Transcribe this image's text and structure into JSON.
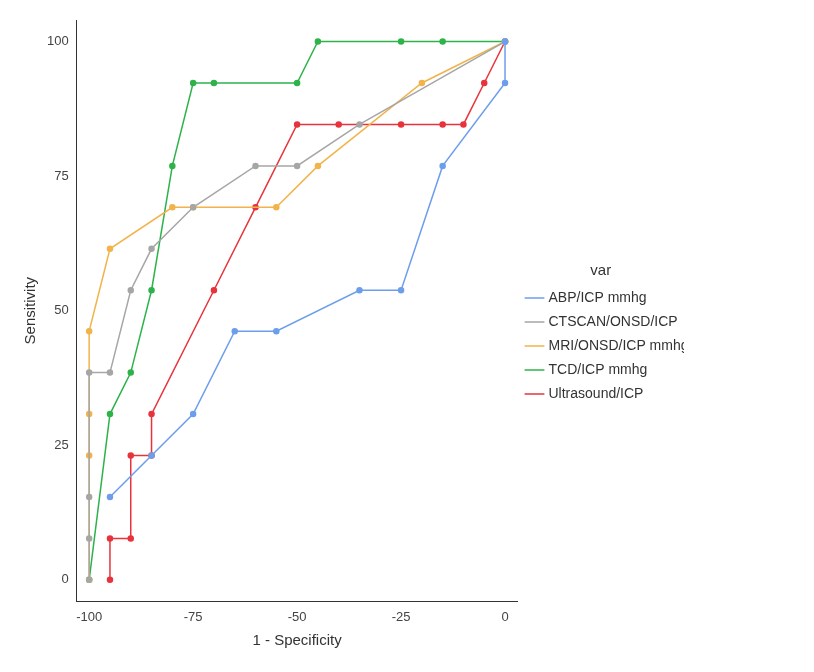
{
  "chart_data": {
    "type": "line",
    "x_label": "1 - Specificity",
    "y_label": "Sensitivity",
    "legend_title": "var",
    "legend": "right",
    "grid": false,
    "marker": "circle",
    "xlim": [
      -103,
      3
    ],
    "xticks": [
      -100,
      -75,
      -50,
      -25,
      0
    ],
    "ylim": [
      -4,
      104
    ],
    "yticks": [
      0,
      25,
      50,
      75,
      100
    ],
    "series": [
      {
        "name": "ABP/ICP mmhg",
        "color": "#6d9eeb",
        "x": [
          -95,
          -85,
          -75,
          -65,
          -55,
          -35,
          -25,
          -15,
          0,
          0
        ],
        "values": [
          15.4,
          23.1,
          30.8,
          46.2,
          46.2,
          53.8,
          53.8,
          76.9,
          92.3,
          100
        ]
      },
      {
        "name": "CTSCAN/ONSD/ICP",
        "color": "#a6a6a6",
        "x": [
          -100,
          -100,
          -100,
          -100,
          -95,
          -90,
          -85,
          -75,
          -60,
          -50,
          -35,
          0
        ],
        "values": [
          0,
          7.7,
          15.4,
          38.5,
          38.5,
          53.8,
          61.5,
          69.2,
          76.9,
          76.9,
          84.6,
          100
        ]
      },
      {
        "name": "MRI/ONSD/ICP mmhg",
        "color": "#f2b34c",
        "x": [
          -100,
          -100,
          -100,
          -100,
          -95,
          -80,
          -75,
          -55,
          -45,
          -20,
          0
        ],
        "values": [
          0,
          23.1,
          30.8,
          46.2,
          61.5,
          69.2,
          69.2,
          69.2,
          76.9,
          92.3,
          100
        ]
      },
      {
        "name": "TCD/ICP mmhg",
        "color": "#2db34a",
        "x": [
          -100,
          -95,
          -90,
          -85,
          -80,
          -75,
          -70,
          -50,
          -45,
          -25,
          -15,
          0
        ],
        "values": [
          0,
          30.8,
          38.5,
          53.8,
          76.9,
          92.3,
          92.3,
          92.3,
          100,
          100,
          100,
          100
        ]
      },
      {
        "name": "Ultrasound/ICP",
        "color": "#e8333c",
        "x": [
          -95,
          -95,
          -90,
          -90,
          -85,
          -85,
          -70,
          -60,
          -50,
          -40,
          -25,
          -15,
          -10,
          -5,
          0
        ],
        "values": [
          0,
          7.7,
          7.7,
          23.1,
          23.1,
          30.8,
          53.8,
          69.2,
          84.6,
          84.6,
          84.6,
          84.6,
          84.6,
          92.3,
          100
        ]
      }
    ]
  }
}
